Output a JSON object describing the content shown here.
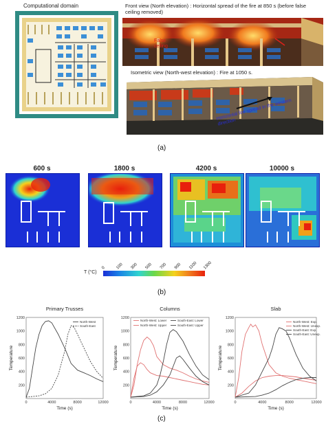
{
  "panel_a": {
    "domain_title": "Computational domain",
    "front_title": "Front view (North elevation) : Horizontal spread of the fire at 850 s (before false ceiling removed)",
    "false_ceiling_label": "False ceiling",
    "iso_title": "Isometric view (North-west elevation) : Fire at 1050 s.",
    "spread_label": "Horizontal fire spread in the western direction",
    "label": "(a)"
  },
  "panel_b": {
    "times": [
      "600 s",
      "1800 s",
      "4200 s",
      "10000 s"
    ],
    "colorbar_ticks": [
      "0",
      "100",
      "300",
      "500",
      "700",
      "900",
      "1100",
      "1300"
    ],
    "colorbar_label": "T (°C)",
    "label": "(b)"
  },
  "panel_c": {
    "label": "(c)"
  },
  "colors": {
    "frame_teal": "#2f8b84",
    "heat_low": "#1a2fd6",
    "heat_high": "#e8200c",
    "red_series": "#e07070",
    "dark_series": "#444444"
  },
  "chart_data": [
    {
      "type": "line",
      "title": "Primary Trusses",
      "xlabel": "Time (s)",
      "ylabel": "Temperature",
      "xlim": [
        0,
        12000
      ],
      "ylim": [
        0,
        1200
      ],
      "xticks": [
        0,
        4000,
        8000,
        12000
      ],
      "yticks": [
        200,
        400,
        600,
        800,
        1000,
        1200
      ],
      "legend_position": "top-right",
      "series": [
        {
          "name": "North-West",
          "style": "solid",
          "color": "#444444",
          "points": [
            [
              0,
              20
            ],
            [
              500,
              150
            ],
            [
              1000,
              450
            ],
            [
              1500,
              750
            ],
            [
              2000,
              950
            ],
            [
              2500,
              1080
            ],
            [
              3000,
              1140
            ],
            [
              3500,
              1150
            ],
            [
              4000,
              1120
            ],
            [
              5000,
              950
            ],
            [
              6000,
              750
            ],
            [
              7000,
              520
            ],
            [
              8000,
              420
            ],
            [
              9000,
              380
            ],
            [
              10000,
              340
            ],
            [
              11000,
              290
            ],
            [
              12000,
              250
            ]
          ]
        },
        {
          "name": "South-East",
          "style": "dashed",
          "color": "#444444",
          "points": [
            [
              0,
              20
            ],
            [
              2000,
              40
            ],
            [
              3000,
              70
            ],
            [
              4000,
              150
            ],
            [
              5000,
              350
            ],
            [
              6000,
              700
            ],
            [
              6500,
              950
            ],
            [
              7000,
              1080
            ],
            [
              7500,
              1050
            ],
            [
              8000,
              950
            ],
            [
              9000,
              750
            ],
            [
              10000,
              550
            ],
            [
              11000,
              400
            ],
            [
              12000,
              300
            ]
          ]
        }
      ]
    },
    {
      "type": "line",
      "title": "Columns",
      "xlabel": "Time (s)",
      "ylabel": "Temperature",
      "xlim": [
        0,
        12000
      ],
      "ylim": [
        0,
        1200
      ],
      "xticks": [
        0,
        4000,
        8000,
        12000
      ],
      "yticks": [
        200,
        400,
        600,
        800,
        1000,
        1200
      ],
      "legend_position": "top",
      "series": [
        {
          "name": "North-West: Lower",
          "style": "solid",
          "color": "#e07070",
          "points": [
            [
              0,
              20
            ],
            [
              500,
              300
            ],
            [
              1000,
              480
            ],
            [
              1500,
              530
            ],
            [
              2000,
              500
            ],
            [
              2500,
              430
            ],
            [
              3000,
              380
            ],
            [
              4000,
              340
            ],
            [
              5000,
              330
            ],
            [
              6000,
              310
            ],
            [
              7000,
              290
            ],
            [
              8000,
              270
            ],
            [
              9000,
              250
            ],
            [
              10000,
              230
            ],
            [
              11000,
              210
            ],
            [
              12000,
              200
            ]
          ]
        },
        {
          "name": "North-West: Upper",
          "style": "solid",
          "color": "#e07070",
          "points": [
            [
              0,
              20
            ],
            [
              500,
              200
            ],
            [
              1000,
              500
            ],
            [
              1500,
              720
            ],
            [
              2000,
              860
            ],
            [
              2500,
              910
            ],
            [
              3000,
              870
            ],
            [
              3500,
              780
            ],
            [
              4000,
              620
            ],
            [
              5000,
              500
            ],
            [
              6000,
              450
            ],
            [
              7000,
              420
            ],
            [
              8000,
              380
            ],
            [
              9000,
              330
            ],
            [
              10000,
              290
            ],
            [
              11000,
              260
            ],
            [
              12000,
              240
            ]
          ]
        },
        {
          "name": "South-East: Lower",
          "style": "solid",
          "color": "#444444",
          "points": [
            [
              0,
              20
            ],
            [
              2000,
              30
            ],
            [
              3000,
              50
            ],
            [
              4000,
              100
            ],
            [
              5000,
              200
            ],
            [
              6000,
              350
            ],
            [
              7000,
              600
            ],
            [
              7500,
              630
            ],
            [
              8000,
              580
            ],
            [
              9000,
              450
            ],
            [
              10000,
              330
            ],
            [
              11000,
              250
            ],
            [
              12000,
              200
            ]
          ]
        },
        {
          "name": "South-East: Upper",
          "style": "solid",
          "color": "#444444",
          "points": [
            [
              0,
              20
            ],
            [
              2000,
              40
            ],
            [
              3000,
              80
            ],
            [
              4000,
              200
            ],
            [
              4500,
              350
            ],
            [
              5000,
              550
            ],
            [
              5500,
              800
            ],
            [
              6000,
              980
            ],
            [
              6500,
              1020
            ],
            [
              7000,
              990
            ],
            [
              8000,
              850
            ],
            [
              9000,
              650
            ],
            [
              10000,
              480
            ],
            [
              11000,
              350
            ],
            [
              12000,
              280
            ]
          ]
        }
      ]
    },
    {
      "type": "line",
      "title": "Slab",
      "xlabel": "Time (s)",
      "ylabel": "Temperature",
      "xlim": [
        0,
        12000
      ],
      "ylim": [
        0,
        1200
      ],
      "xticks": [
        0,
        4000,
        8000,
        12000
      ],
      "yticks": [
        200,
        400,
        600,
        800,
        1000,
        1200
      ],
      "legend_position": "top-right",
      "series": [
        {
          "name": "North-West: Exp.",
          "style": "solid",
          "color": "#e07070",
          "points": [
            [
              0,
              20
            ],
            [
              500,
              300
            ],
            [
              1000,
              700
            ],
            [
              1500,
              950
            ],
            [
              2000,
              1050
            ],
            [
              2300,
              1100
            ],
            [
              2600,
              1060
            ],
            [
              3000,
              1090
            ],
            [
              3500,
              1000
            ],
            [
              4000,
              800
            ],
            [
              5000,
              500
            ],
            [
              6000,
              380
            ],
            [
              7000,
              330
            ],
            [
              8000,
              300
            ],
            [
              9000,
              280
            ],
            [
              10000,
              260
            ],
            [
              11000,
              240
            ],
            [
              12000,
              220
            ]
          ]
        },
        {
          "name": "North-West: Unexp.",
          "style": "solid",
          "color": "#e07070",
          "points": [
            [
              0,
              20
            ],
            [
              1000,
              80
            ],
            [
              2000,
              180
            ],
            [
              3000,
              260
            ],
            [
              4000,
              310
            ],
            [
              5000,
              330
            ],
            [
              6000,
              340
            ],
            [
              7000,
              340
            ],
            [
              8000,
              330
            ],
            [
              9000,
              320
            ],
            [
              10000,
              300
            ],
            [
              11000,
              285
            ],
            [
              12000,
              270
            ]
          ]
        },
        {
          "name": "South-East: Exp.",
          "style": "solid",
          "color": "#444444",
          "points": [
            [
              0,
              20
            ],
            [
              2000,
              80
            ],
            [
              3000,
              200
            ],
            [
              4000,
              400
            ],
            [
              5000,
              600
            ],
            [
              5500,
              750
            ],
            [
              6000,
              950
            ],
            [
              6500,
              1050
            ],
            [
              7000,
              1030
            ],
            [
              7500,
              1000
            ],
            [
              8000,
              900
            ],
            [
              9000,
              650
            ],
            [
              10000,
              450
            ],
            [
              11000,
              330
            ],
            [
              12000,
              260
            ]
          ]
        },
        {
          "name": "South-East: Unexp.",
          "style": "solid",
          "color": "#444444",
          "points": [
            [
              0,
              20
            ],
            [
              3000,
              30
            ],
            [
              4000,
              50
            ],
            [
              5000,
              80
            ],
            [
              6000,
              130
            ],
            [
              7000,
              190
            ],
            [
              8000,
              240
            ],
            [
              9000,
              280
            ],
            [
              10000,
              300
            ],
            [
              11000,
              310
            ],
            [
              12000,
              310
            ]
          ]
        }
      ]
    }
  ]
}
